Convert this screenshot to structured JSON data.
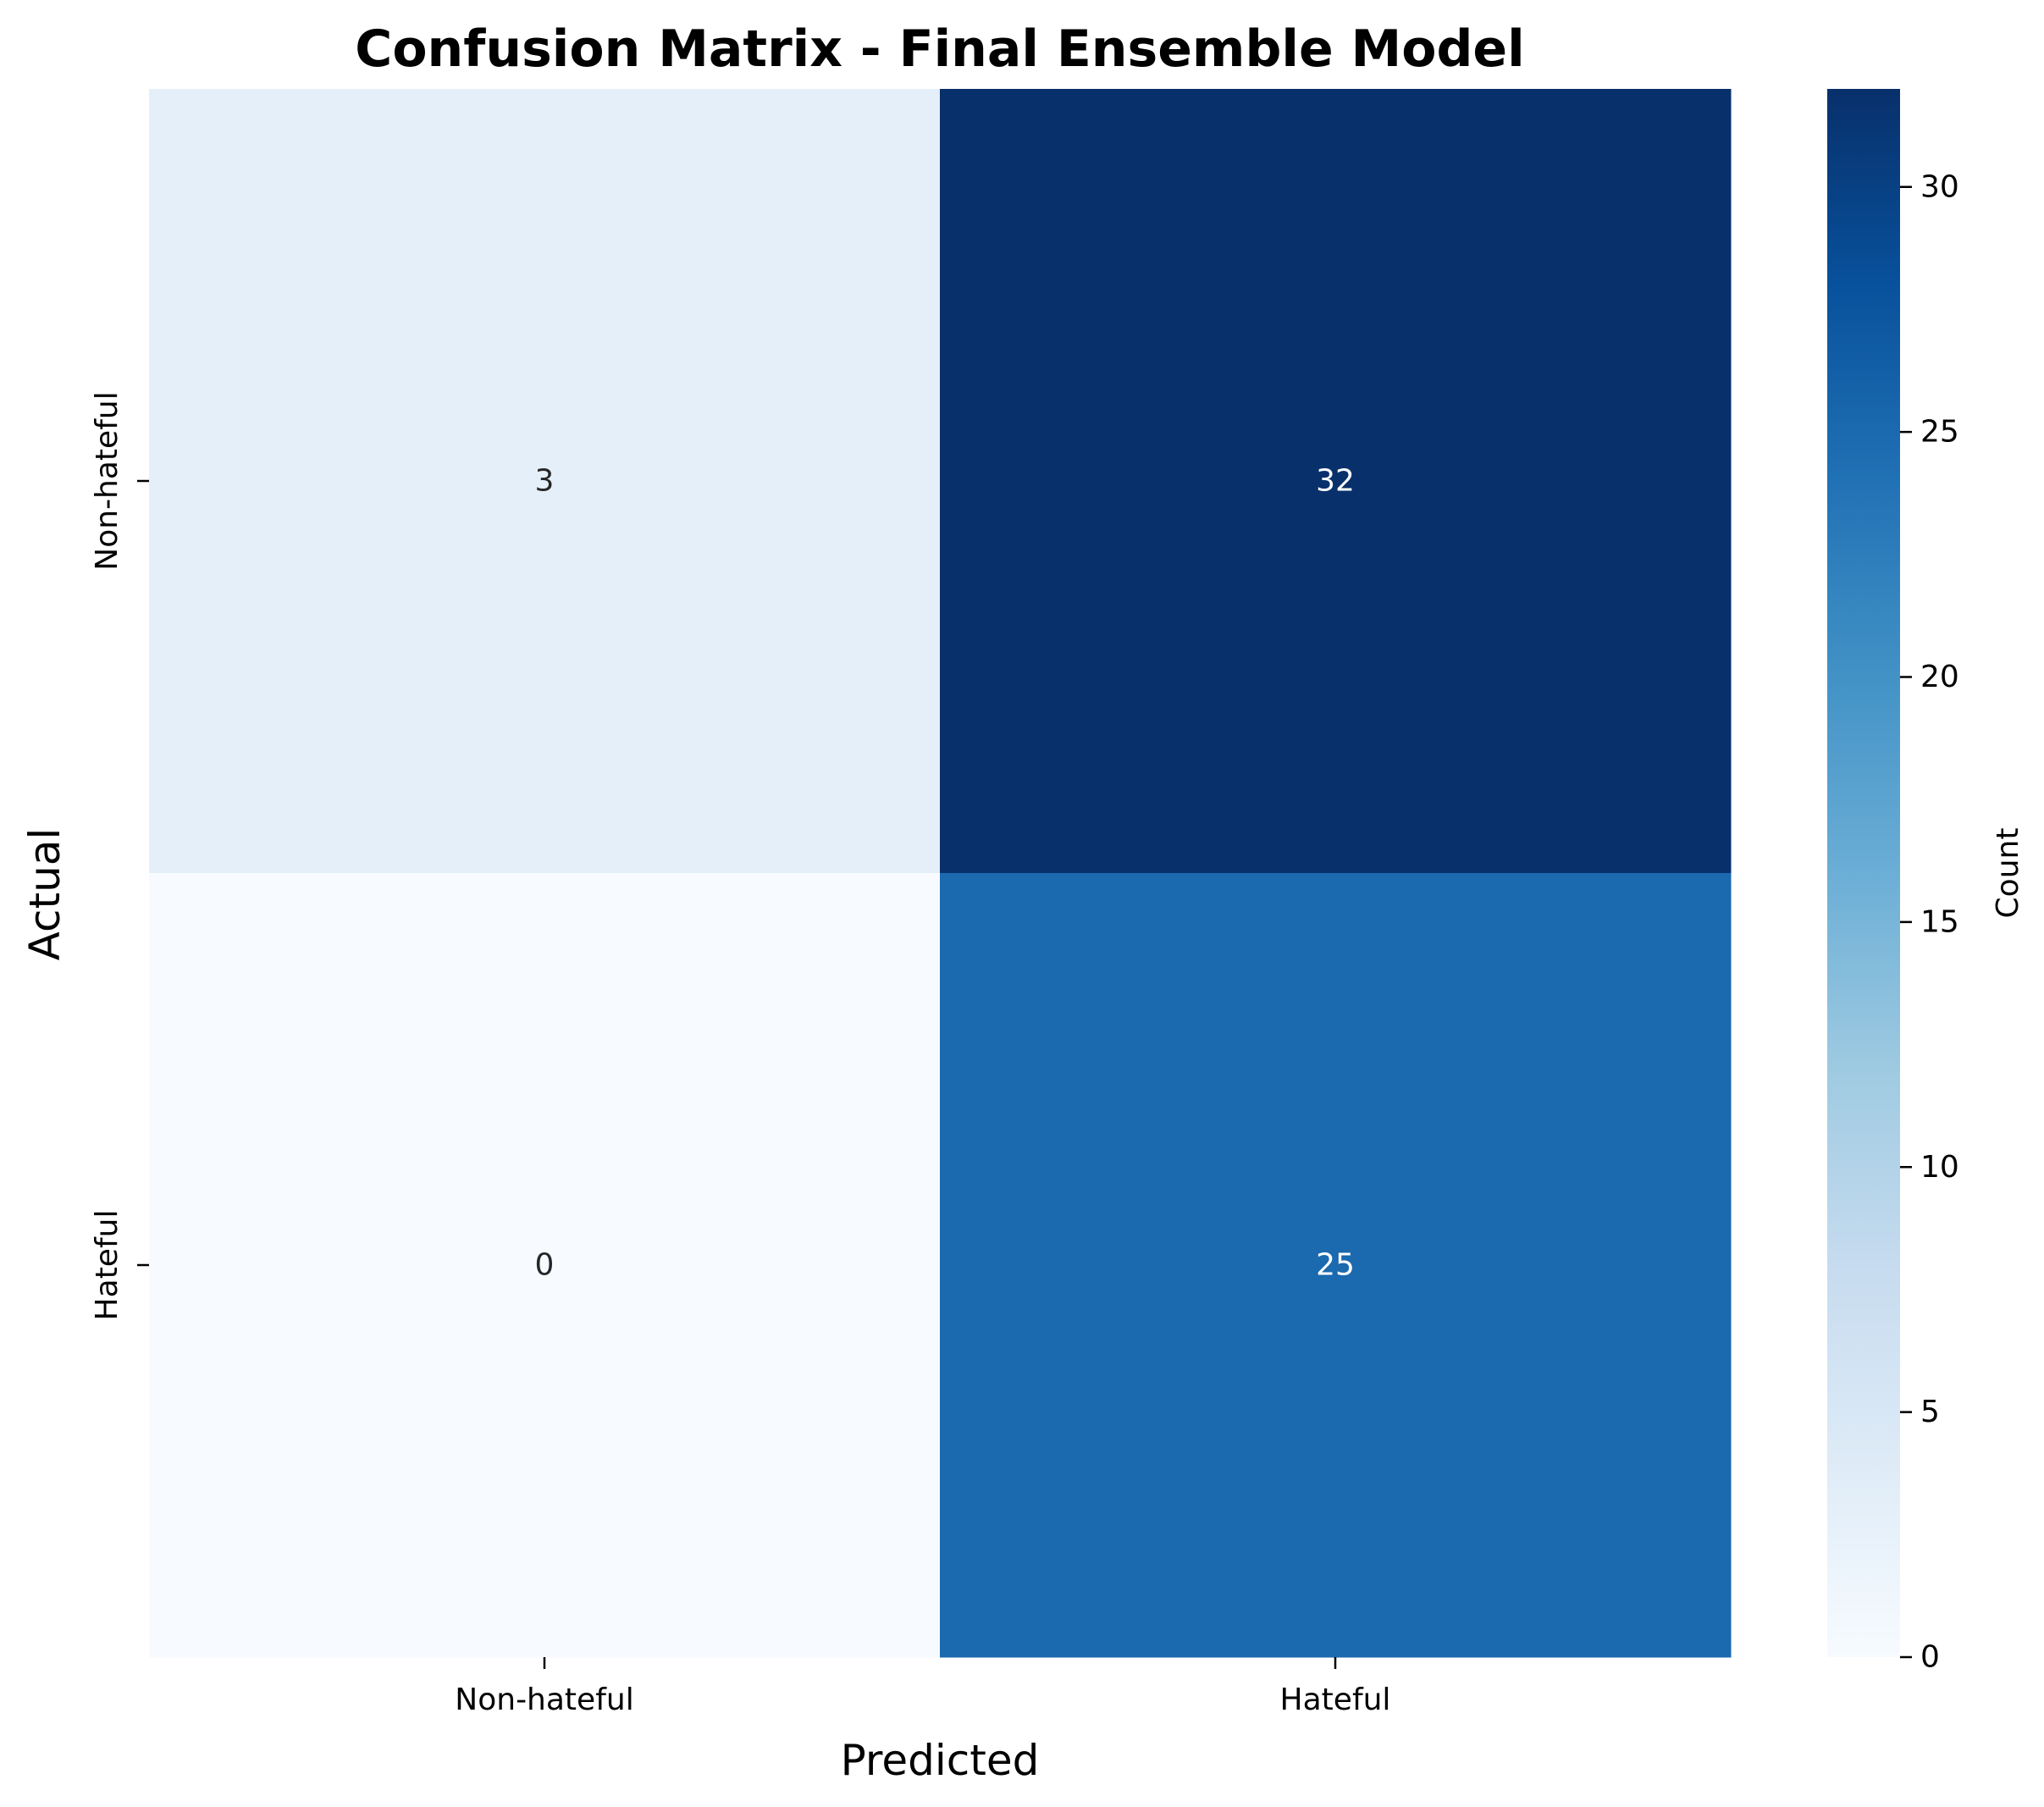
{
  "chart_data": {
    "type": "heatmap",
    "title": "Confusion Matrix - Final Ensemble Model",
    "xlabel": "Predicted",
    "ylabel": "Actual",
    "x_categories": [
      "Non-hateful",
      "Hateful"
    ],
    "y_categories": [
      "Non-hateful",
      "Hateful"
    ],
    "values": [
      [
        3,
        32
      ],
      [
        0,
        25
      ]
    ],
    "colormap": "Blues",
    "colorbar": {
      "label": "Count",
      "range": [
        0,
        32
      ],
      "ticks": [
        0,
        5,
        10,
        15,
        20,
        25,
        30
      ]
    },
    "grid": false
  }
}
